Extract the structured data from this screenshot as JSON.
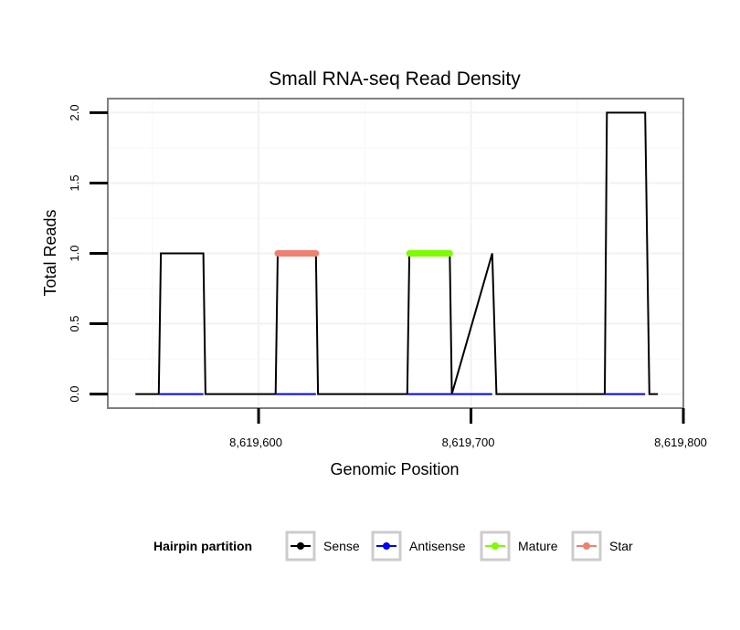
{
  "chart_data": {
    "type": "line",
    "title": "Small RNA-seq Read Density",
    "xlabel": "Genomic Position",
    "ylabel": "Total Reads",
    "xlim": [
      8619529,
      8619800
    ],
    "ylim": [
      -0.1,
      2.1
    ],
    "x_ticks": [
      {
        "value": 8619600,
        "label": "8,619,600"
      },
      {
        "value": 8619700,
        "label": "8,619,700"
      },
      {
        "value": 8619800,
        "label": "8,619,800"
      }
    ],
    "y_ticks": [
      {
        "value": 0.0,
        "label": "0.0"
      },
      {
        "value": 0.5,
        "label": "0.5"
      },
      {
        "value": 1.0,
        "label": "1.0"
      },
      {
        "value": 1.5,
        "label": "1.5"
      },
      {
        "value": 2.0,
        "label": "2.0"
      }
    ],
    "grid": true,
    "legend": {
      "title": "Hairpin partition",
      "position": "bottom",
      "entries": [
        {
          "name": "Sense",
          "color": "#000000"
        },
        {
          "name": "Antisense",
          "color": "#0000ff"
        },
        {
          "name": "Mature",
          "color": "#7cfc00"
        },
        {
          "name": "Star",
          "color": "#f08070"
        }
      ]
    },
    "series": [
      {
        "name": "Sense",
        "color": "#000000",
        "x": [
          8619542,
          8619553,
          8619554,
          8619574,
          8619575,
          8619608,
          8619609,
          8619627,
          8619628,
          8619670,
          8619671,
          8619690,
          8619691,
          8619710,
          8619712,
          8619763,
          8619764,
          8619782,
          8619784,
          8619788
        ],
        "y": [
          0,
          0,
          1,
          1,
          0,
          0,
          1,
          1,
          0,
          0,
          1,
          1,
          0,
          1,
          0,
          0,
          2,
          2,
          0,
          0
        ]
      },
      {
        "name": "Antisense",
        "color": "#0000ff",
        "segments": [
          [
            8619553,
            8619574
          ],
          [
            8619608,
            8619627
          ],
          [
            8619670,
            8619710
          ],
          [
            8619763,
            8619782
          ]
        ],
        "value": 0
      },
      {
        "name": "Mature",
        "color": "#7cfc00",
        "segments": [
          [
            8619671,
            8619690
          ]
        ],
        "value": 1
      },
      {
        "name": "Star",
        "color": "#f08070",
        "segments": [
          [
            8619609,
            8619627
          ]
        ],
        "value": 1
      }
    ]
  }
}
